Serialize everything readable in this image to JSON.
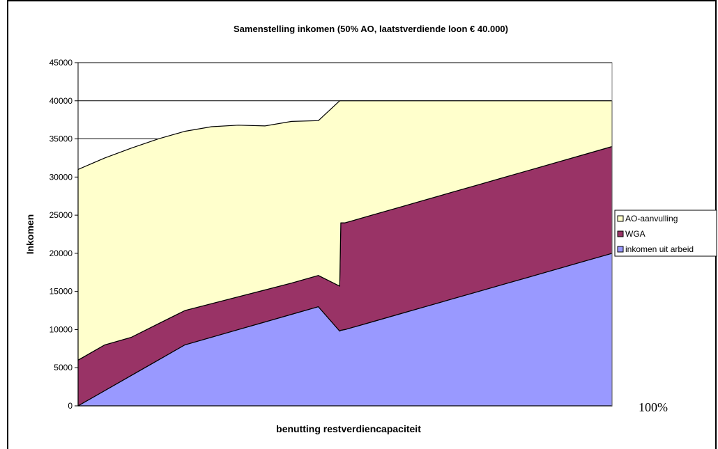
{
  "chart_data": {
    "type": "area",
    "stacked": true,
    "title": "Samenstelling inkomen (50% AO, laatstverdiende loon € 40.000)",
    "xlabel": "benutting restverdiencapaciteit",
    "ylabel": "Inkomen",
    "ylim": [
      0,
      45000
    ],
    "yticks": [
      0,
      5000,
      10000,
      15000,
      20000,
      25000,
      30000,
      35000,
      40000,
      45000
    ],
    "x_end_label": "100%",
    "x": [
      0,
      5,
      10,
      15,
      20,
      25,
      30,
      35,
      40,
      45,
      49,
      49.2,
      50,
      55,
      60,
      65,
      70,
      75,
      80,
      85,
      90,
      95,
      100
    ],
    "series": [
      {
        "name": "inkomen uit arbeid",
        "color": "#9999ff",
        "values": [
          0,
          2000,
          4000,
          6000,
          8000,
          9000,
          10000,
          11000,
          12000,
          13000,
          9800,
          9900,
          10000,
          11000,
          12000,
          13000,
          14000,
          15000,
          16000,
          17000,
          18000,
          19000,
          20000
        ]
      },
      {
        "name": "WGA",
        "color": "#993366",
        "values": [
          6000,
          6000,
          5000,
          4750,
          4500,
          4400,
          4300,
          4200,
          4100,
          4100,
          5900,
          14100,
          14000,
          14000,
          14000,
          14000,
          14000,
          14000,
          14000,
          14000,
          14000,
          14000,
          14000
        ]
      },
      {
        "name": "AO-aanvulling",
        "color": "#ffffcc",
        "values": [
          25000,
          24500,
          24800,
          24250,
          23500,
          23200,
          22500,
          21500,
          21200,
          20300,
          24300,
          16000,
          16000,
          15000,
          14000,
          13000,
          12000,
          11000,
          10000,
          9000,
          8000,
          7000,
          6000
        ]
      }
    ],
    "legend_position": "right",
    "grid": "horizontal lines above data only"
  }
}
